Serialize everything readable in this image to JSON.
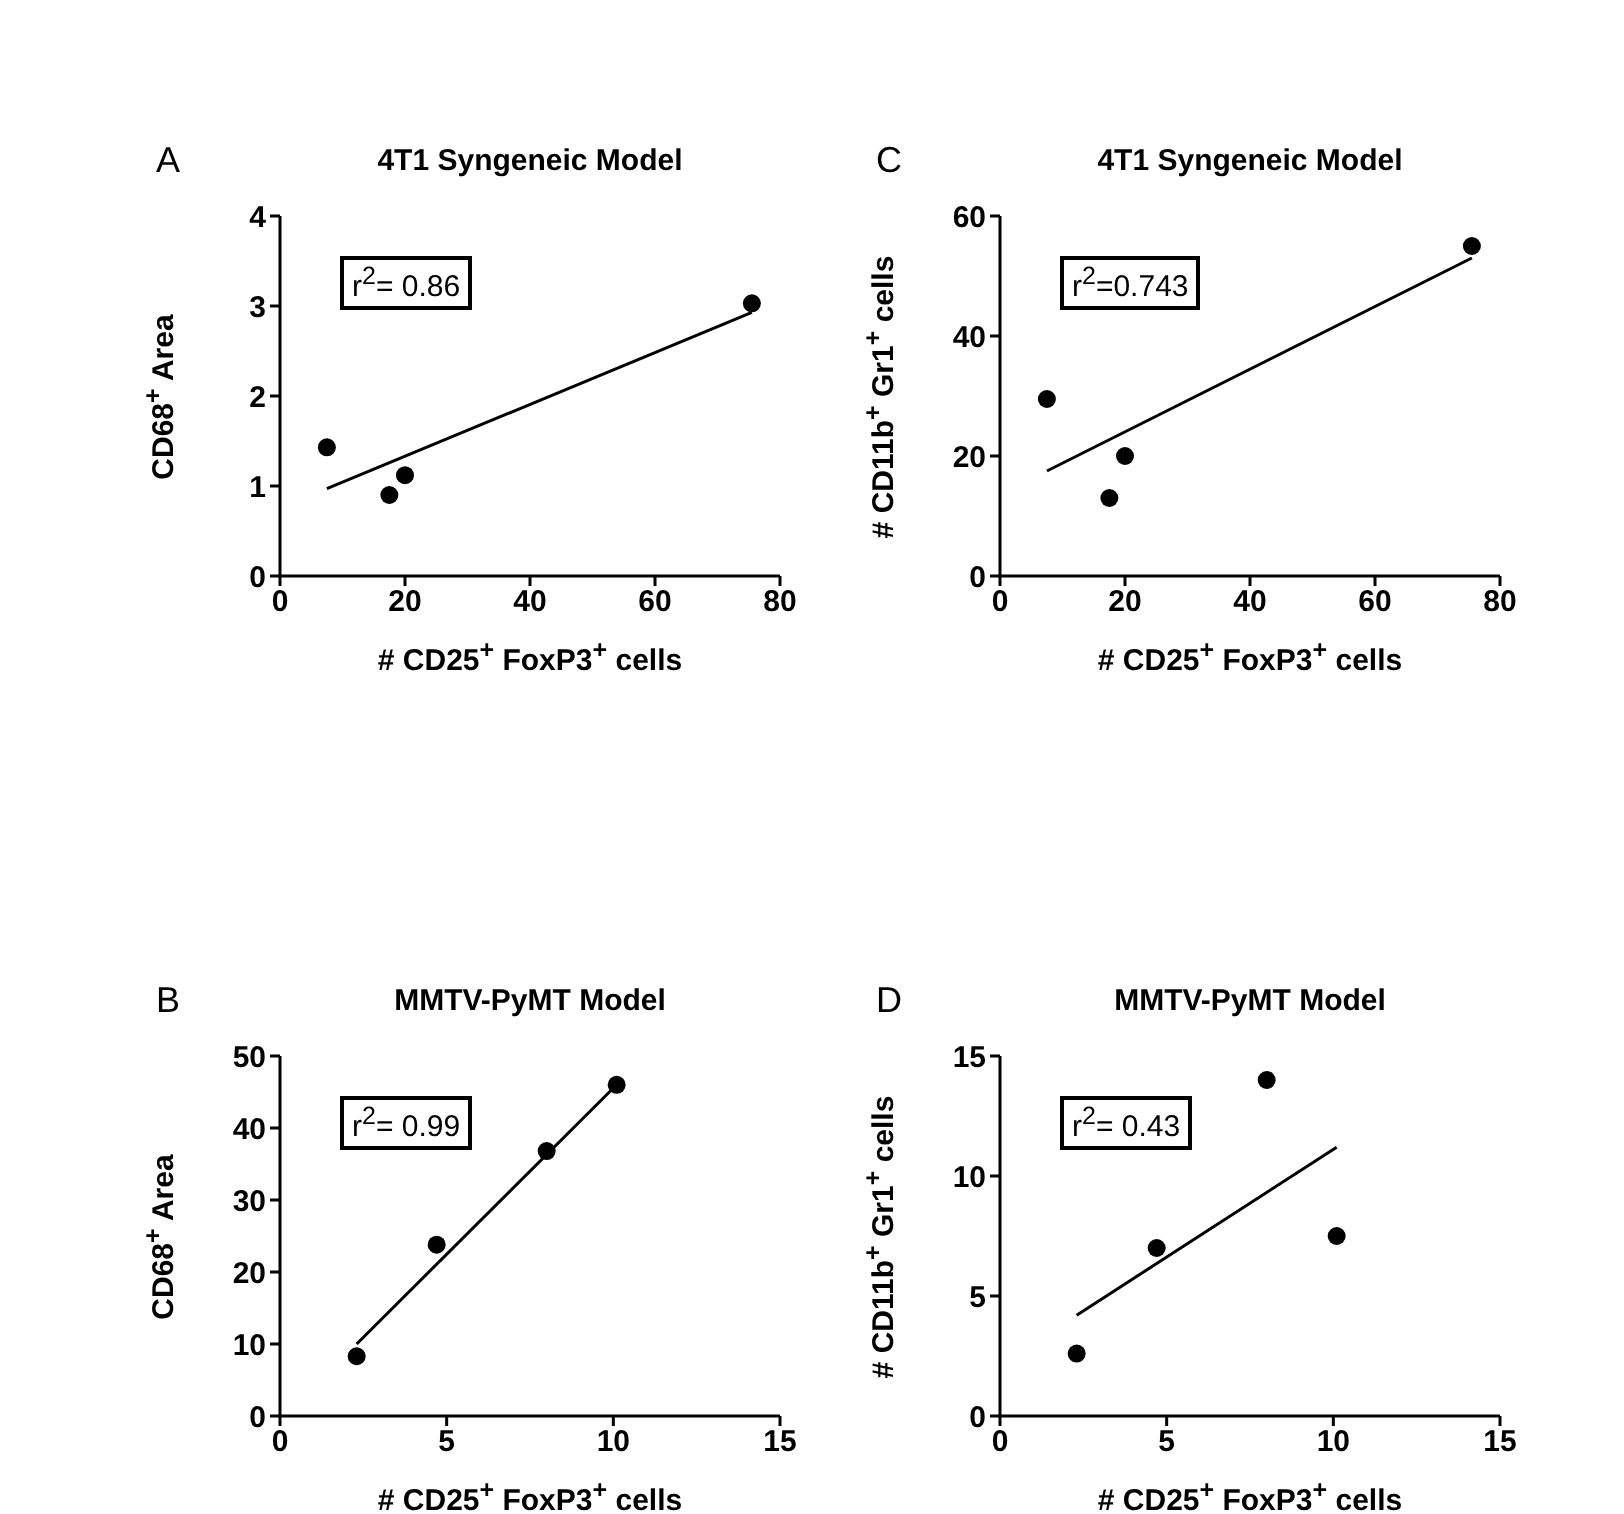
{
  "chart_data": [
    {
      "type": "scatter",
      "title": "4T1 Syngeneic Model",
      "xlabel": "# CD25$^{+}$ FoxP3$^{+}$ cells",
      "ylabel": "CD68$^{+}$ Area",
      "annotations": [
        "A",
        "r$^{2}$= 0.86"
      ],
      "marker": "circle",
      "xlim": [
        0,
        80
      ],
      "xticks": [
        0,
        20,
        40,
        60,
        80
      ],
      "ylim": [
        0,
        4
      ],
      "yticks": [
        0,
        1,
        2,
        3,
        4
      ],
      "series": [
        {
          "type": "scatter",
          "color": "#000000",
          "x": [
            7.5,
            17.5,
            20,
            75.5
          ],
          "values": [
            1.43,
            0.9,
            1.12,
            3.03
          ]
        },
        {
          "type": "line",
          "color": "#000000",
          "marker": "none",
          "x": [
            7.5,
            75.5
          ],
          "values": [
            0.97,
            2.93
          ]
        }
      ]
    },
    {
      "type": "scatter",
      "title": "4T1 Syngeneic Model",
      "xlabel": "# CD25$^{+}$ FoxP3$^{+}$ cells",
      "ylabel": "# CD11b$^{+}$ Gr1$^{+}$ cells",
      "annotations": [
        "C",
        "r$^{2}$=0.743"
      ],
      "marker": "circle",
      "xlim": [
        0,
        80
      ],
      "xticks": [
        0,
        20,
        40,
        60,
        80
      ],
      "ylim": [
        0,
        60
      ],
      "yticks": [
        0,
        20,
        40,
        60
      ],
      "series": [
        {
          "type": "scatter",
          "color": "#000000",
          "x": [
            7.5,
            17.5,
            20,
            75.5
          ],
          "values": [
            29.5,
            13,
            20,
            55
          ]
        },
        {
          "type": "line",
          "color": "#000000",
          "marker": "none",
          "x": [
            7.5,
            75.5
          ],
          "values": [
            17.5,
            53
          ]
        }
      ]
    },
    {
      "type": "scatter",
      "title": "MMTV-PyMT Model",
      "xlabel": "# CD25$^{+}$ FoxP3$^{+}$ cells",
      "ylabel": "CD68$^{+}$ Area",
      "annotations": [
        "B",
        "r$^{2}$= 0.99"
      ],
      "marker": "circle",
      "xlim": [
        0,
        15
      ],
      "xticks": [
        0,
        5,
        10,
        15
      ],
      "ylim": [
        0,
        50
      ],
      "yticks": [
        0,
        10,
        20,
        30,
        40,
        50
      ],
      "series": [
        {
          "type": "scatter",
          "color": "#000000",
          "x": [
            2.3,
            4.7,
            8,
            10.1
          ],
          "values": [
            8.3,
            23.8,
            36.8,
            46
          ]
        },
        {
          "type": "line",
          "color": "#000000",
          "marker": "none",
          "x": [
            2.3,
            10.1
          ],
          "values": [
            10,
            46
          ]
        }
      ]
    },
    {
      "type": "scatter",
      "title": "MMTV-PyMT Model",
      "xlabel": "# CD25$^{+}$ FoxP3$^{+}$ cells",
      "ylabel": "# CD11b$^{+}$ Gr1$^{+}$ cells",
      "annotations": [
        "D",
        "r$^{2}$= 0.43"
      ],
      "marker": "circle",
      "xlim": [
        0,
        15
      ],
      "xticks": [
        0,
        5,
        10,
        15
      ],
      "ylim": [
        0,
        15
      ],
      "yticks": [
        0,
        5,
        10,
        15
      ],
      "series": [
        {
          "type": "scatter",
          "color": "#000000",
          "x": [
            2.3,
            4.7,
            8,
            10.1
          ],
          "values": [
            2.6,
            7,
            14,
            7.5
          ]
        },
        {
          "type": "line",
          "color": "#000000",
          "marker": "none",
          "x": [
            2.3,
            10.1
          ],
          "values": [
            4.2,
            11.2
          ]
        }
      ]
    }
  ]
}
